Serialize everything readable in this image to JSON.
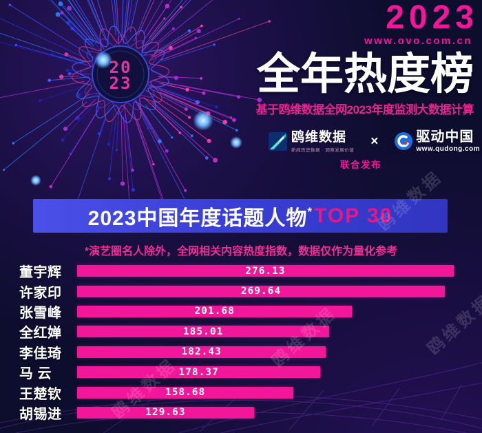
{
  "header": {
    "year": "2023",
    "site": "www.ovo.com.cn",
    "title": "全年热度榜",
    "subtitle": "基于鸥维数据全网2023年度监测大数据计算"
  },
  "publishers": {
    "owl": {
      "name": "鸥维数据",
      "tagline": "新闻历史数据 · 洞察发展价值"
    },
    "cross": "×",
    "qudong": {
      "name": "驱动中国",
      "site": "www.qudong.com"
    },
    "joint": "联合发布"
  },
  "banner": {
    "title_main": "2023中国年度话题人物",
    "asterisk": "*",
    "title_accent": "TOP 30"
  },
  "note": "*演艺圈名人除外，全网相关内容热度指数，数据仅作为量化参考",
  "center_badge": {
    "line1": "20",
    "line2": "23"
  },
  "watermark": {
    "text": "鸥维数据"
  },
  "colors": {
    "accent_pink": "#f2169b",
    "banner_blue": "#3a3fd6",
    "bg": "#0d0d2d"
  },
  "chart_data": {
    "type": "bar",
    "orientation": "horizontal",
    "title": "2023中国年度话题人物 TOP 30",
    "categories": [
      "董宇辉",
      "许家印",
      "张雪峰",
      "全红婵",
      "李佳琦",
      "马 云",
      "王楚钦",
      "胡锡进"
    ],
    "values": [
      276.13,
      269.64,
      201.68,
      185.01,
      182.43,
      178.37,
      158.68,
      129.63
    ],
    "xlabel": "",
    "ylabel": "",
    "xlim": [
      0,
      280
    ],
    "grid": false,
    "legend": false,
    "bar_color": "#f2169b",
    "value_label_position": "center"
  }
}
